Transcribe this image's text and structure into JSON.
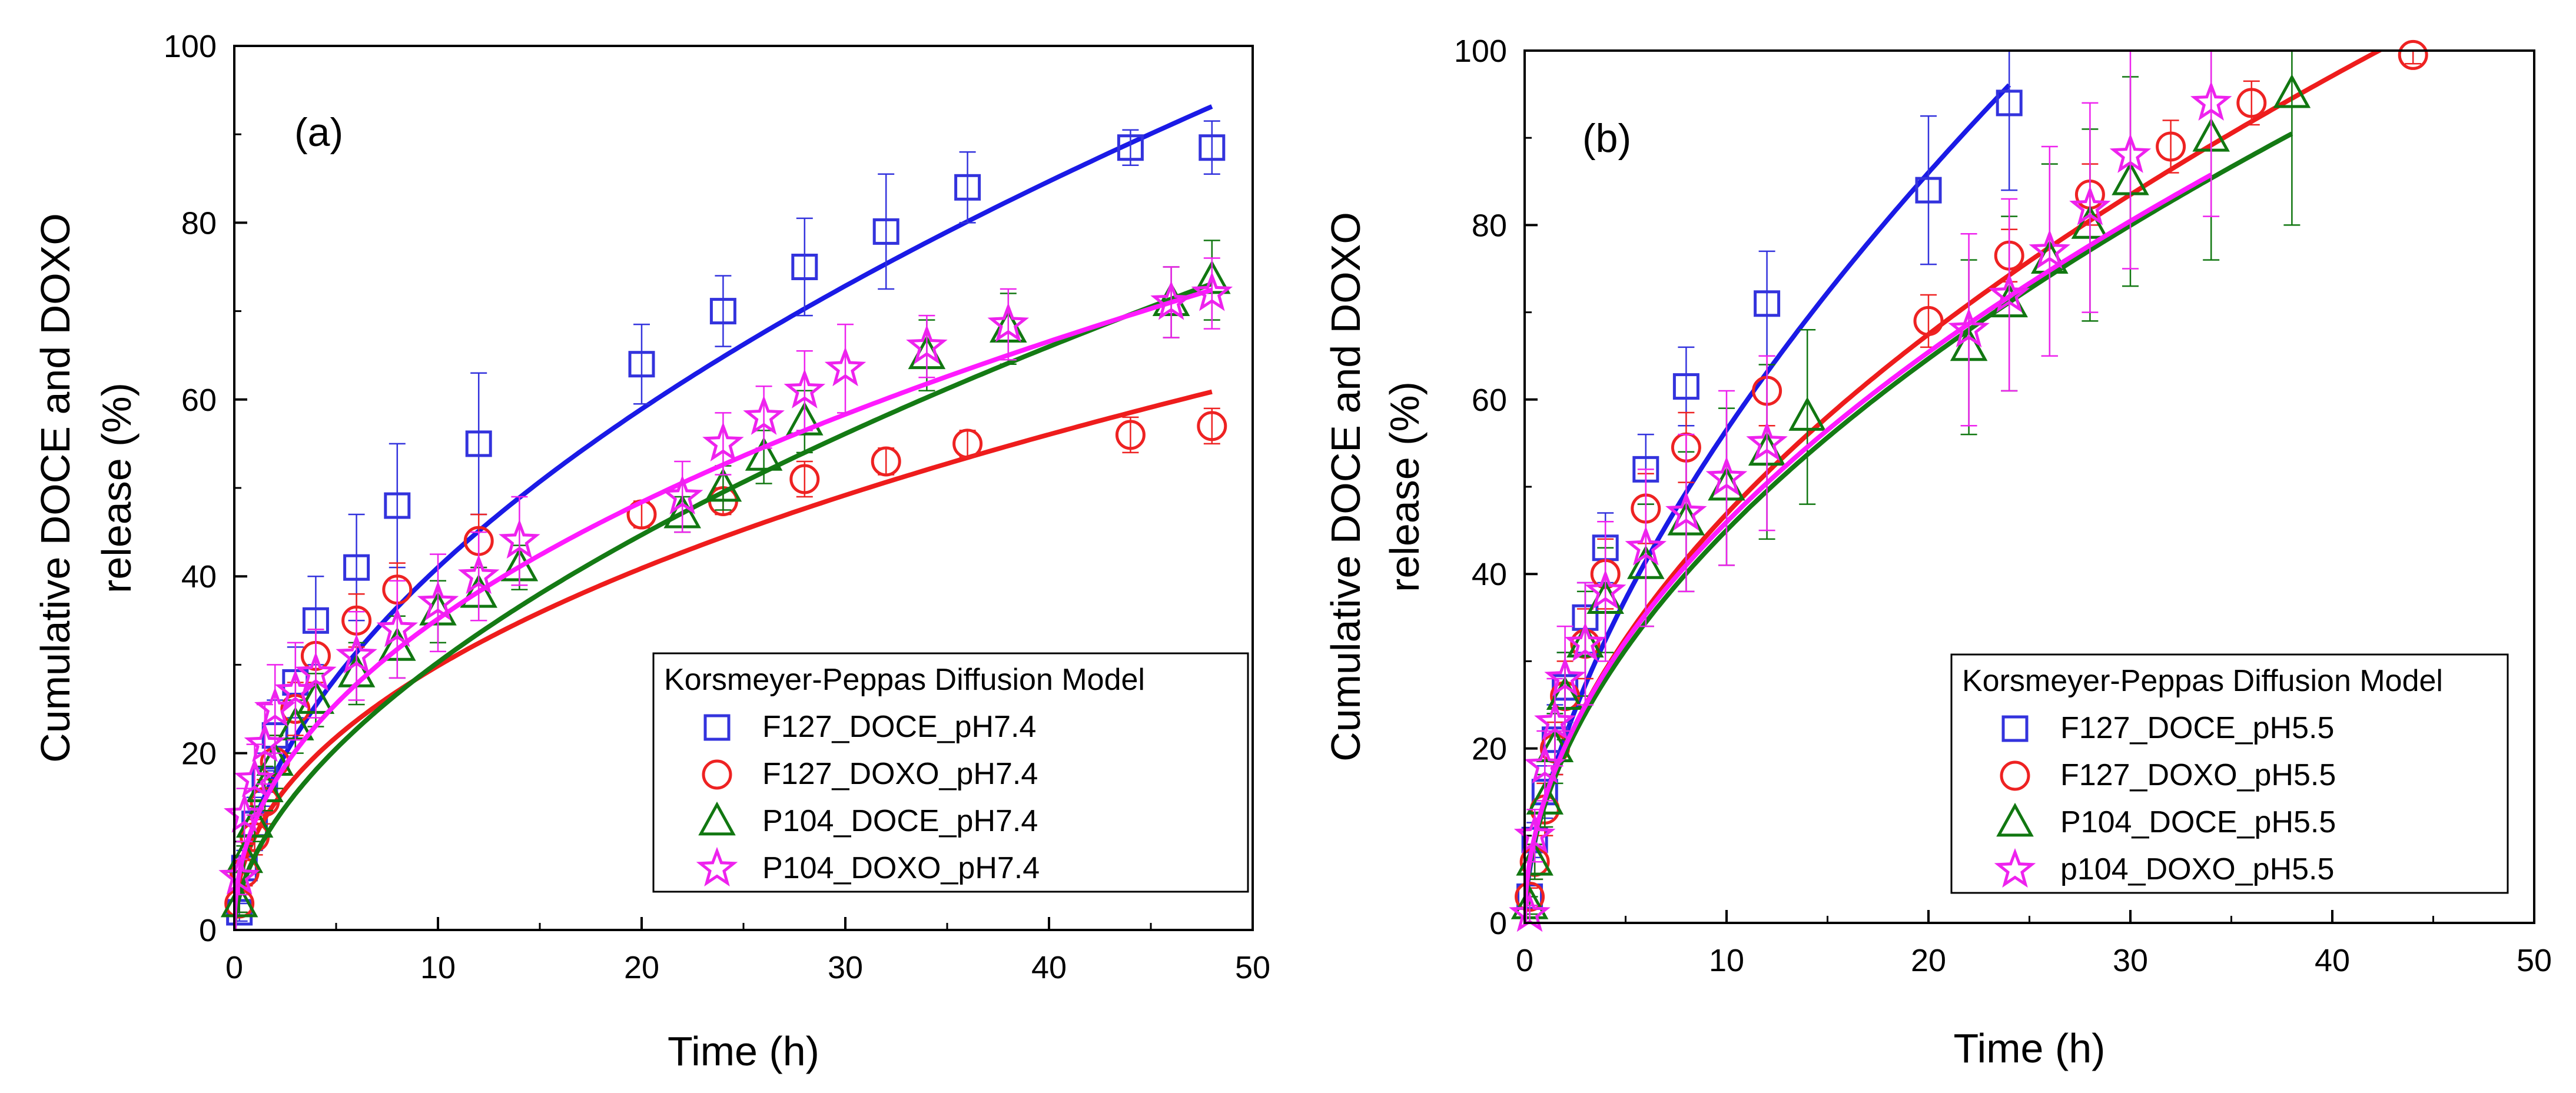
{
  "chart_data": [
    {
      "panel": "(a)",
      "type": "scatter",
      "xlabel": "Time (h)",
      "ylabel_line1": "Cumulative DOCE and DOXO",
      "ylabel_line2": "release (%)",
      "xlim": [
        0,
        50
      ],
      "ylim": [
        0,
        100
      ],
      "xticks": [
        0,
        10,
        20,
        30,
        40,
        50
      ],
      "yticks": [
        0,
        20,
        40,
        60,
        80,
        100
      ],
      "legend_position": "bottom-right",
      "legend_title": "Korsmeyer-Peppas Diffusion Model",
      "series": [
        {
          "name": "F127_DOCE_pH7.4",
          "marker": "square",
          "color": "#3333dd",
          "fit_color": "#1a1ae6",
          "fit": {
            "k": 12.3,
            "n": 0.523,
            "xmax": 48
          },
          "x": [
            0.25,
            0.5,
            1,
            1.5,
            2,
            3,
            4,
            6,
            8,
            12,
            20,
            24,
            28,
            32,
            36,
            44,
            48
          ],
          "y": [
            2,
            7,
            12,
            17,
            22,
            28,
            35,
            41,
            48,
            55,
            64,
            70,
            75,
            79,
            84,
            88.5,
            88.5
          ],
          "err": [
            1,
            2,
            3,
            3,
            4,
            4,
            5,
            6,
            7,
            8,
            4.5,
            4,
            5.5,
            6.5,
            4,
            2,
            3
          ]
        },
        {
          "name": "F127_DOXO_pH7.4",
          "marker": "circle",
          "color": "#ee2222",
          "fit_color": "#ee1c1c",
          "fit": {
            "k": 10.5,
            "n": 0.454,
            "xmax": 48
          },
          "x": [
            0.25,
            0.5,
            1,
            1.5,
            2,
            3,
            4,
            6,
            8,
            12,
            20,
            24,
            28,
            32,
            36,
            44,
            48
          ],
          "y": [
            3,
            6.5,
            10.5,
            14.5,
            19,
            25,
            31,
            35,
            38.5,
            44,
            47,
            48.5,
            51,
            53,
            55,
            56,
            57
          ],
          "err": [
            1,
            1.5,
            2,
            2.5,
            3,
            3,
            3,
            3,
            3,
            3,
            1.5,
            1.5,
            2,
            1.5,
            1.5,
            2,
            2
          ]
        },
        {
          "name": "P104_DOCE_pH7.4",
          "marker": "triangle",
          "color": "#117711",
          "fit_color": "#147a14",
          "fit": {
            "k": 8.3,
            "n": 0.562,
            "xmax": 48
          },
          "x": [
            0.25,
            0.5,
            1,
            1.5,
            2,
            3,
            4,
            6,
            8,
            10,
            12,
            14,
            22,
            24,
            26,
            28,
            34,
            38,
            46,
            48
          ],
          "y": [
            3,
            8,
            12,
            16,
            19,
            23,
            26,
            29,
            32,
            36,
            38,
            41,
            47,
            50,
            53.5,
            57.5,
            65,
            68,
            71,
            73.5
          ],
          "err": [
            1,
            1.5,
            2,
            2.5,
            3,
            3,
            3,
            3.5,
            3.5,
            3.5,
            3,
            2.5,
            2,
            2.5,
            3,
            3.5,
            4,
            4,
            4,
            4.5
          ]
        },
        {
          "name": "P104_DOXO_pH7.4",
          "marker": "star",
          "color": "#ee22ee",
          "fit_color": "#ff1aff",
          "fit": {
            "k": 12.2,
            "n": 0.46,
            "xmax": 48
          },
          "x": [
            0.25,
            0.5,
            1,
            1.5,
            2,
            3,
            4,
            6,
            8,
            10,
            12,
            14,
            22,
            24,
            26,
            28,
            30,
            34,
            38,
            46,
            48
          ],
          "y": [
            6,
            13,
            17,
            21,
            25,
            27,
            29,
            31,
            34,
            37,
            40,
            44,
            49,
            55,
            58,
            61,
            63.5,
            66,
            68.5,
            71,
            72
          ],
          "err": [
            2,
            3,
            4,
            4.5,
            5,
            5.5,
            5,
            5,
            5.5,
            5.5,
            5,
            5,
            4,
            3.5,
            3.5,
            4.5,
            5,
            3.5,
            4,
            4,
            4
          ]
        }
      ]
    },
    {
      "panel": "(b)",
      "type": "scatter",
      "xlabel": "Time (h)",
      "ylabel_line1": "Cumulative DOCE and DOXO",
      "ylabel_line2": "release (%)",
      "xlim": [
        0,
        50
      ],
      "ylim": [
        0,
        100
      ],
      "xticks": [
        0,
        10,
        20,
        30,
        40,
        50
      ],
      "yticks": [
        0,
        20,
        40,
        60,
        80,
        100
      ],
      "legend_position": "bottom-right",
      "legend_title": "Korsmeyer-Peppas Diffusion Model",
      "series": [
        {
          "name": "F127_DOCE_pH5.5",
          "marker": "square",
          "color": "#3333dd",
          "fit_color": "#1a1ae6",
          "fit": {
            "k": 14.0,
            "n": 0.606,
            "xmax": 24
          },
          "x": [
            0.25,
            0.5,
            1,
            1.5,
            2,
            3,
            4,
            6,
            8,
            12,
            20,
            24
          ],
          "y": [
            3,
            9.5,
            15,
            21,
            27,
            35,
            43,
            52,
            61.5,
            71,
            84,
            94
          ],
          "err": [
            1,
            2,
            3,
            4,
            4,
            4,
            4,
            4,
            4.5,
            6,
            8.5,
            10
          ]
        },
        {
          "name": "F127_DOXO_pH5.5",
          "marker": "circle",
          "color": "#ee2222",
          "fit_color": "#ee1c1c",
          "fit": {
            "k": 14.0,
            "n": 0.525,
            "xmax": 43.5
          },
          "x": [
            0.25,
            0.5,
            1,
            1.5,
            2,
            3,
            4,
            6,
            8,
            12,
            20,
            24,
            28,
            32,
            36,
            44
          ],
          "y": [
            3,
            7,
            13,
            20,
            26,
            32,
            40,
            47.5,
            54.5,
            61,
            69,
            76.5,
            83.5,
            89,
            94,
            99.5
          ],
          "err": [
            1,
            2,
            3,
            3,
            4,
            4,
            4,
            4,
            4,
            4,
            3,
            3,
            3.5,
            3,
            2.5,
            1
          ]
        },
        {
          "name": "P104_DOCE_pH5.5",
          "marker": "triangle",
          "color": "#117711",
          "fit_color": "#147a14",
          "fit": {
            "k": 13.5,
            "n": 0.523,
            "xmax": 38
          },
          "x": [
            0.25,
            0.5,
            1,
            1.5,
            2,
            3,
            4,
            6,
            8,
            10,
            12,
            14,
            22,
            24,
            26,
            28,
            30,
            34,
            38
          ],
          "y": [
            2,
            7,
            14,
            20,
            26,
            32,
            37,
            41,
            46,
            50,
            54,
            58,
            66,
            71,
            76,
            80,
            85,
            90,
            95
          ],
          "err": [
            1,
            2,
            3,
            4,
            5,
            6,
            6,
            7,
            8,
            9,
            10,
            10,
            10,
            10,
            11,
            11,
            12,
            14,
            15
          ]
        },
        {
          "name": "p104_DOXO_pH5.5",
          "marker": "star",
          "color": "#ee22ee",
          "fit_color": "#ff1aff",
          "fit": {
            "k": 14.2,
            "n": 0.51,
            "xmax": 34
          },
          "x": [
            0.25,
            0.5,
            1,
            1.5,
            2,
            3,
            4,
            6,
            8,
            10,
            12,
            22,
            24,
            26,
            28,
            30,
            34
          ],
          "y": [
            1,
            10,
            18,
            23,
            28,
            32,
            38,
            43,
            47,
            51,
            55,
            68,
            72,
            77,
            82,
            88,
            94
          ],
          "err": [
            1,
            3,
            4,
            5,
            6,
            7,
            8,
            9,
            9,
            10,
            10,
            11,
            11,
            12,
            12,
            13,
            13
          ]
        }
      ]
    }
  ]
}
